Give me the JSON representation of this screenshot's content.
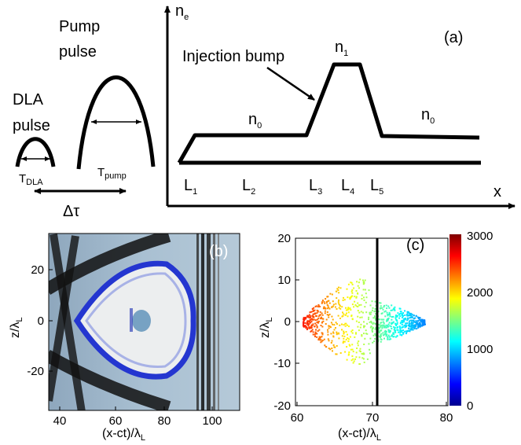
{
  "panel_a": {
    "label": "(a)",
    "y_axis": {
      "base": "n",
      "sub": "e"
    },
    "x_axis": "x",
    "injection": "Injection bump",
    "n1": {
      "base": "n",
      "sub": "1"
    },
    "n0_left": {
      "base": "n",
      "sub": "0"
    },
    "n0_right": {
      "base": "n",
      "sub": "0"
    },
    "positions": [
      {
        "base": "L",
        "sub": "1"
      },
      {
        "base": "L",
        "sub": "2"
      },
      {
        "base": "L",
        "sub": "3"
      },
      {
        "base": "L",
        "sub": "4"
      },
      {
        "base": "L",
        "sub": "5"
      }
    ],
    "pump": {
      "title_lines": [
        "Pump",
        "pulse"
      ],
      "duration": {
        "base": "T",
        "sub": "pump"
      }
    },
    "dla": {
      "title_lines": [
        "DLA",
        "pulse"
      ],
      "duration": {
        "base": "T",
        "sub": "DLA"
      }
    },
    "delay": "Δτ"
  },
  "panel_b": {
    "label": "(b)",
    "xticks": [
      "40",
      "60",
      "80",
      "100"
    ],
    "yticks": [
      "20",
      "0",
      "-20"
    ],
    "x_label": {
      "base": "(x-ct)/λ",
      "sub": "L"
    },
    "y_label": {
      "base": "z/λ",
      "sub": "L"
    }
  },
  "panel_c": {
    "label": "(c)",
    "xticks": [
      "60",
      "70",
      "80"
    ],
    "yticks": [
      "20",
      "10",
      "0",
      "-10",
      "-20"
    ],
    "colorbar_ticks": [
      "3000",
      "2000",
      "1000",
      "0"
    ],
    "x_label": {
      "base": "(x-ct)/λ",
      "sub": "L"
    },
    "y_label": {
      "base": "z/λ",
      "sub": "L"
    }
  }
}
